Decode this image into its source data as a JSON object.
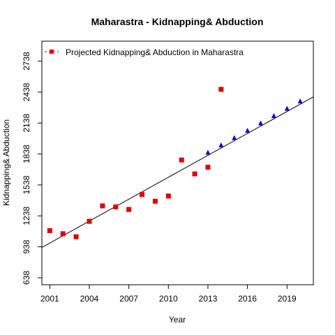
{
  "chart_data": {
    "type": "scatter",
    "title": "Maharastra  -  Kidnapping& Abduction",
    "xlabel": "Year",
    "ylabel": "Kidnapping& Abduction",
    "xlim": [
      2000.4,
      2021.0
    ],
    "ylim": [
      570,
      2932
    ],
    "x_ticks": [
      2001,
      2004,
      2007,
      2010,
      2013,
      2016,
      2019
    ],
    "y_ticks": [
      638,
      938,
      1238,
      1538,
      1838,
      2138,
      2438,
      2738
    ],
    "legend": {
      "placement": "top-left",
      "entries": [
        "Projected  Kidnapping& Abduction  in  Maharastra"
      ]
    },
    "series": [
      {
        "name": "Projected  Kidnapping& Abduction  in  Maharastra",
        "color": "#dd0000",
        "marker": "square",
        "x": [
          2001,
          2002,
          2003,
          2004,
          2005,
          2006,
          2007,
          2008,
          2009,
          2010,
          2011,
          2012,
          2013,
          2014
        ],
        "y": [
          1095,
          1065,
          1035,
          1185,
          1335,
          1325,
          1300,
          1445,
          1380,
          1430,
          1780,
          1645,
          1710,
          2465
        ]
      },
      {
        "color": "#0000cc",
        "marker": "triangle",
        "x": [
          2013,
          2014,
          2015,
          2016,
          2017,
          2018,
          2019,
          2020
        ],
        "y": [
          1852,
          1923,
          1994,
          2065,
          2136,
          2207,
          2278,
          2349
        ]
      }
    ],
    "trend_line": {
      "color": "#000000",
      "x": [
        2000.4,
        2021.0
      ],
      "y": [
        932,
        2392
      ]
    }
  }
}
